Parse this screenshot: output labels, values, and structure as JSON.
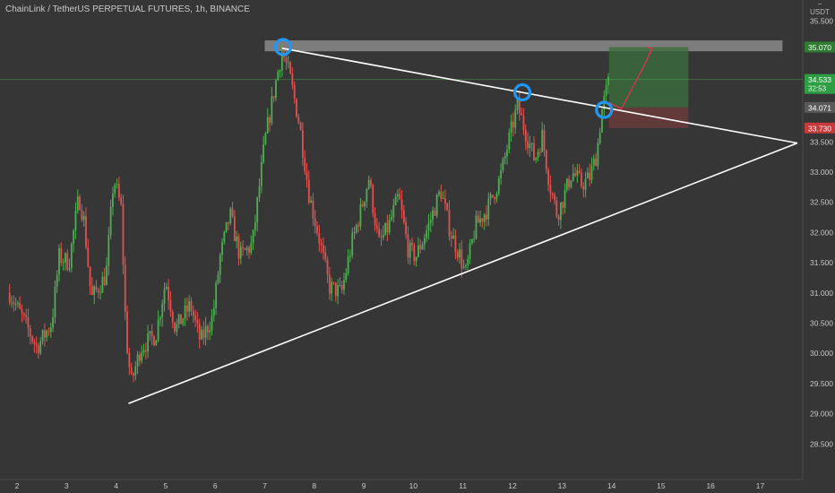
{
  "header": {
    "title": "ChainLink / TetherUS PERPETUAL FUTURES, 1h, BINANCE",
    "unit_top": "−",
    "unit": "USDT"
  },
  "colors": {
    "background": "#363636",
    "up": "#4caf50",
    "down": "#e0524f",
    "trendline": "#ffffff",
    "marker": "#2196f3",
    "target_zone": "#3c6e3c",
    "stop_zone": "#6e3c3c",
    "resistance_zone": "#8a8a8a",
    "projection_arrow": "#e0304e"
  },
  "chart_data": {
    "type": "candlestick",
    "title": "",
    "xlabel": "",
    "ylabel": "USDT",
    "grid": false,
    "ylim": [
      28.2,
      36.4
    ],
    "xlim": [
      1.8,
      18.0
    ],
    "x_ticks": [
      "2",
      "3",
      "4",
      "5",
      "6",
      "7",
      "8",
      "9",
      "10",
      "11",
      "12",
      "13",
      "14",
      "15",
      "16",
      "17"
    ],
    "y_ticks": [
      "35.500",
      "34.500",
      "33.500",
      "33.000",
      "32.500",
      "32.000",
      "31.500",
      "31.000",
      "30.500",
      "30.000",
      "29.500",
      "29.000",
      "28.500"
    ],
    "price_labels": [
      {
        "value": 35.07,
        "text": "35.070",
        "role": "target"
      },
      {
        "value": 34.533,
        "text": "34.533",
        "sub": "32:53",
        "role": "current"
      },
      {
        "value": 34.071,
        "text": "34.071",
        "role": "entry"
      },
      {
        "value": 33.73,
        "text": "33.730",
        "role": "stop"
      }
    ],
    "close_path": [
      [
        1.85,
        31.0
      ],
      [
        2.1,
        30.6
      ],
      [
        2.4,
        30.1
      ],
      [
        2.7,
        30.5
      ],
      [
        2.85,
        31.6
      ],
      [
        3.05,
        31.5
      ],
      [
        3.25,
        32.6
      ],
      [
        3.35,
        32.2
      ],
      [
        3.5,
        30.9
      ],
      [
        3.8,
        31.3
      ],
      [
        3.95,
        32.9
      ],
      [
        4.1,
        32.4
      ],
      [
        4.2,
        30.3
      ],
      [
        4.3,
        29.5
      ],
      [
        4.5,
        30.1
      ],
      [
        4.8,
        30.3
      ],
      [
        5.0,
        31.2
      ],
      [
        5.2,
        30.4
      ],
      [
        5.5,
        30.8
      ],
      [
        5.7,
        30.2
      ],
      [
        5.95,
        30.6
      ],
      [
        6.1,
        31.6
      ],
      [
        6.3,
        32.3
      ],
      [
        6.5,
        31.6
      ],
      [
        6.75,
        31.8
      ],
      [
        7.0,
        33.5
      ],
      [
        7.2,
        34.4
      ],
      [
        7.35,
        35.0
      ],
      [
        7.5,
        34.6
      ],
      [
        7.7,
        33.8
      ],
      [
        7.9,
        32.6
      ],
      [
        8.1,
        31.9
      ],
      [
        8.3,
        31.1
      ],
      [
        8.55,
        31.0
      ],
      [
        8.75,
        31.8
      ],
      [
        8.95,
        32.4
      ],
      [
        9.1,
        32.9
      ],
      [
        9.3,
        31.8
      ],
      [
        9.5,
        32.1
      ],
      [
        9.7,
        32.6
      ],
      [
        9.9,
        31.7
      ],
      [
        10.05,
        31.6
      ],
      [
        10.3,
        32.1
      ],
      [
        10.55,
        32.7
      ],
      [
        10.75,
        32.0
      ],
      [
        10.95,
        31.6
      ],
      [
        11.05,
        31.3
      ],
      [
        11.25,
        32.1
      ],
      [
        11.5,
        32.4
      ],
      [
        11.75,
        32.9
      ],
      [
        11.95,
        33.6
      ],
      [
        12.1,
        34.1
      ],
      [
        12.25,
        33.7
      ],
      [
        12.45,
        33.2
      ],
      [
        12.6,
        33.6
      ],
      [
        12.75,
        32.8
      ],
      [
        12.9,
        32.3
      ],
      [
        13.0,
        32.5
      ],
      [
        13.2,
        33.0
      ],
      [
        13.4,
        32.8
      ],
      [
        13.55,
        32.9
      ],
      [
        13.7,
        33.3
      ],
      [
        13.8,
        34.0
      ],
      [
        13.95,
        34.53
      ]
    ],
    "trendlines": [
      {
        "from": [
          4.25,
          29.17
        ],
        "to": [
          17.75,
          33.48
        ]
      },
      {
        "from": [
          7.35,
          35.05
        ],
        "to": [
          17.75,
          33.48
        ]
      }
    ],
    "zones": [
      {
        "role": "resistance",
        "x": [
          7.0,
          17.45
        ],
        "y": [
          35.0,
          35.18
        ]
      },
      {
        "role": "target",
        "x": [
          13.95,
          15.55
        ],
        "y": [
          34.07,
          35.07
        ]
      },
      {
        "role": "stop",
        "x": [
          13.95,
          15.55
        ],
        "y": [
          33.73,
          34.07
        ]
      }
    ],
    "markers": [
      {
        "x": 7.37,
        "y": 35.07
      },
      {
        "x": 12.2,
        "y": 34.32
      },
      {
        "x": 13.85,
        "y": 34.03
      }
    ],
    "projection": [
      [
        13.95,
        34.15
      ],
      [
        14.2,
        34.05
      ],
      [
        14.65,
        34.75
      ],
      [
        14.82,
        35.05
      ]
    ],
    "current_price_line": 34.533
  }
}
